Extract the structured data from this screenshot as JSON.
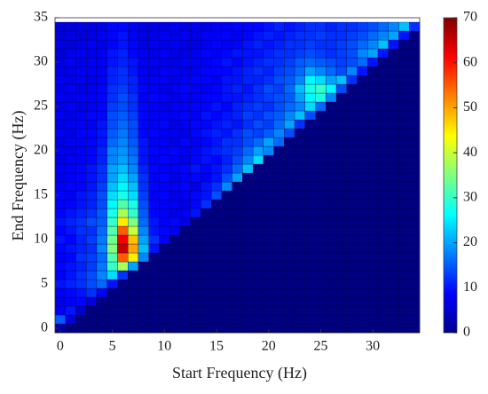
{
  "chart_data": {
    "type": "heatmap",
    "x_label": "Start Frequency (Hz)",
    "y_label": "End Frequency (Hz)",
    "x": [
      0,
      1,
      2,
      3,
      4,
      5,
      6,
      7,
      8,
      9,
      10,
      11,
      12,
      13,
      14,
      15,
      16,
      17,
      18,
      19,
      20,
      21,
      22,
      23,
      24,
      25,
      26,
      27,
      28,
      29,
      30,
      31,
      32,
      33,
      34
    ],
    "y": [
      0,
      1,
      2,
      3,
      4,
      5,
      6,
      7,
      8,
      9,
      10,
      11,
      12,
      13,
      14,
      15,
      16,
      17,
      18,
      19,
      20,
      21,
      22,
      23,
      24,
      25,
      26,
      27,
      28,
      29,
      30,
      31,
      32,
      33,
      34
    ],
    "z": [
      [
        3,
        0,
        0,
        0,
        0,
        0,
        0,
        0,
        0,
        0,
        0,
        0,
        0,
        0,
        0,
        0,
        0,
        0,
        0,
        0,
        0,
        0,
        0,
        0,
        0,
        0,
        0,
        0,
        0,
        0,
        0,
        0,
        0,
        0,
        0
      ],
      [
        15,
        6,
        0,
        0,
        0,
        0,
        0,
        0,
        0,
        0,
        0,
        0,
        0,
        0,
        0,
        0,
        0,
        0,
        0,
        0,
        0,
        0,
        0,
        0,
        0,
        0,
        0,
        0,
        0,
        0,
        0,
        0,
        0,
        0,
        0
      ],
      [
        8,
        10,
        5,
        0,
        0,
        0,
        0,
        0,
        0,
        0,
        0,
        0,
        0,
        0,
        0,
        0,
        0,
        0,
        0,
        0,
        0,
        0,
        0,
        0,
        0,
        0,
        0,
        0,
        0,
        0,
        0,
        0,
        0,
        0,
        0
      ],
      [
        7,
        8,
        9,
        6,
        0,
        0,
        0,
        0,
        0,
        0,
        0,
        0,
        0,
        0,
        0,
        0,
        0,
        0,
        0,
        0,
        0,
        0,
        0,
        0,
        0,
        0,
        0,
        0,
        0,
        0,
        0,
        0,
        0,
        0,
        0
      ],
      [
        8,
        9,
        10,
        12,
        8,
        0,
        0,
        0,
        0,
        0,
        0,
        0,
        0,
        0,
        0,
        0,
        0,
        0,
        0,
        0,
        0,
        0,
        0,
        0,
        0,
        0,
        0,
        0,
        0,
        0,
        0,
        0,
        0,
        0,
        0
      ],
      [
        10,
        11,
        12,
        14,
        16,
        10,
        0,
        0,
        0,
        0,
        0,
        0,
        0,
        0,
        0,
        0,
        0,
        0,
        0,
        0,
        0,
        0,
        0,
        0,
        0,
        0,
        0,
        0,
        0,
        0,
        0,
        0,
        0,
        0,
        0
      ],
      [
        8,
        10,
        12,
        14,
        18,
        24,
        12,
        0,
        0,
        0,
        0,
        0,
        0,
        0,
        0,
        0,
        0,
        0,
        0,
        0,
        0,
        0,
        0,
        0,
        0,
        0,
        0,
        0,
        0,
        0,
        0,
        0,
        0,
        0,
        0
      ],
      [
        9,
        10,
        11,
        13,
        17,
        30,
        38,
        20,
        0,
        0,
        0,
        0,
        0,
        0,
        0,
        0,
        0,
        0,
        0,
        0,
        0,
        0,
        0,
        0,
        0,
        0,
        0,
        0,
        0,
        0,
        0,
        0,
        0,
        0,
        0
      ],
      [
        8,
        9,
        12,
        13,
        16,
        32,
        55,
        45,
        18,
        0,
        0,
        0,
        0,
        0,
        0,
        0,
        0,
        0,
        0,
        0,
        0,
        0,
        0,
        0,
        0,
        0,
        0,
        0,
        0,
        0,
        0,
        0,
        0,
        0,
        0
      ],
      [
        9,
        10,
        11,
        12,
        18,
        35,
        65,
        50,
        22,
        10,
        0,
        0,
        0,
        0,
        0,
        0,
        0,
        0,
        0,
        0,
        0,
        0,
        0,
        0,
        0,
        0,
        0,
        0,
        0,
        0,
        0,
        0,
        0,
        0,
        0
      ],
      [
        10,
        9,
        11,
        13,
        17,
        34,
        62,
        48,
        20,
        12,
        8,
        0,
        0,
        0,
        0,
        0,
        0,
        0,
        0,
        0,
        0,
        0,
        0,
        0,
        0,
        0,
        0,
        0,
        0,
        0,
        0,
        0,
        0,
        0,
        0
      ],
      [
        9,
        10,
        12,
        12,
        16,
        32,
        55,
        40,
        18,
        10,
        9,
        8,
        0,
        0,
        0,
        0,
        0,
        0,
        0,
        0,
        0,
        0,
        0,
        0,
        0,
        0,
        0,
        0,
        0,
        0,
        0,
        0,
        0,
        0,
        0
      ],
      [
        10,
        11,
        12,
        14,
        15,
        30,
        45,
        35,
        16,
        10,
        8,
        9,
        7,
        0,
        0,
        0,
        0,
        0,
        0,
        0,
        0,
        0,
        0,
        0,
        0,
        0,
        0,
        0,
        0,
        0,
        0,
        0,
        0,
        0,
        0
      ],
      [
        9,
        10,
        11,
        12,
        15,
        28,
        38,
        30,
        15,
        9,
        8,
        7,
        8,
        10,
        0,
        0,
        0,
        0,
        0,
        0,
        0,
        0,
        0,
        0,
        0,
        0,
        0,
        0,
        0,
        0,
        0,
        0,
        0,
        0,
        0
      ],
      [
        8,
        9,
        10,
        11,
        14,
        26,
        32,
        28,
        14,
        9,
        8,
        8,
        7,
        9,
        12,
        0,
        0,
        0,
        0,
        0,
        0,
        0,
        0,
        0,
        0,
        0,
        0,
        0,
        0,
        0,
        0,
        0,
        0,
        0,
        0
      ],
      [
        9,
        8,
        10,
        11,
        14,
        24,
        28,
        24,
        13,
        8,
        9,
        7,
        8,
        9,
        10,
        14,
        0,
        0,
        0,
        0,
        0,
        0,
        0,
        0,
        0,
        0,
        0,
        0,
        0,
        0,
        0,
        0,
        0,
        0,
        0
      ],
      [
        8,
        9,
        9,
        10,
        13,
        22,
        26,
        22,
        12,
        9,
        8,
        8,
        9,
        7,
        10,
        12,
        18,
        0,
        0,
        0,
        0,
        0,
        0,
        0,
        0,
        0,
        0,
        0,
        0,
        0,
        0,
        0,
        0,
        0,
        0
      ],
      [
        7,
        8,
        9,
        10,
        12,
        20,
        24,
        20,
        12,
        8,
        9,
        7,
        8,
        9,
        8,
        10,
        14,
        20,
        0,
        0,
        0,
        0,
        0,
        0,
        0,
        0,
        0,
        0,
        0,
        0,
        0,
        0,
        0,
        0,
        0
      ],
      [
        8,
        8,
        9,
        10,
        12,
        20,
        22,
        18,
        11,
        9,
        8,
        8,
        9,
        10,
        9,
        10,
        12,
        16,
        22,
        0,
        0,
        0,
        0,
        0,
        0,
        0,
        0,
        0,
        0,
        0,
        0,
        0,
        0,
        0,
        0
      ],
      [
        7,
        8,
        8,
        9,
        11,
        18,
        20,
        17,
        10,
        8,
        9,
        8,
        7,
        9,
        10,
        9,
        11,
        14,
        18,
        24,
        0,
        0,
        0,
        0,
        0,
        0,
        0,
        0,
        0,
        0,
        0,
        0,
        0,
        0,
        0
      ],
      [
        8,
        7,
        8,
        9,
        11,
        18,
        19,
        16,
        10,
        9,
        8,
        9,
        8,
        9,
        10,
        11,
        12,
        13,
        16,
        20,
        18,
        0,
        0,
        0,
        0,
        0,
        0,
        0,
        0,
        0,
        0,
        0,
        0,
        0,
        0
      ],
      [
        7,
        8,
        8,
        9,
        10,
        16,
        18,
        15,
        10,
        8,
        8,
        7,
        9,
        8,
        9,
        10,
        12,
        12,
        14,
        16,
        20,
        16,
        0,
        0,
        0,
        0,
        0,
        0,
        0,
        0,
        0,
        0,
        0,
        0,
        0
      ],
      [
        8,
        7,
        9,
        9,
        10,
        15,
        17,
        14,
        9,
        9,
        8,
        8,
        7,
        9,
        10,
        11,
        10,
        12,
        14,
        13,
        15,
        18,
        14,
        0,
        0,
        0,
        0,
        0,
        0,
        0,
        0,
        0,
        0,
        0,
        0
      ],
      [
        7,
        8,
        8,
        8,
        10,
        14,
        16,
        14,
        9,
        8,
        9,
        7,
        8,
        9,
        9,
        10,
        11,
        10,
        12,
        14,
        13,
        16,
        20,
        12,
        0,
        0,
        0,
        0,
        0,
        0,
        0,
        0,
        0,
        0,
        0
      ],
      [
        8,
        7,
        8,
        9,
        9,
        14,
        15,
        13,
        9,
        8,
        8,
        8,
        9,
        8,
        10,
        9,
        10,
        11,
        13,
        12,
        14,
        15,
        18,
        22,
        14,
        0,
        0,
        0,
        0,
        0,
        0,
        0,
        0,
        0,
        0
      ],
      [
        7,
        8,
        7,
        8,
        9,
        13,
        14,
        12,
        9,
        8,
        7,
        8,
        8,
        9,
        9,
        10,
        9,
        11,
        12,
        13,
        12,
        14,
        16,
        18,
        24,
        16,
        0,
        0,
        0,
        0,
        0,
        0,
        0,
        0,
        0
      ],
      [
        8,
        7,
        8,
        8,
        9,
        12,
        14,
        12,
        8,
        9,
        8,
        7,
        8,
        8,
        9,
        9,
        10,
        10,
        11,
        12,
        13,
        14,
        15,
        20,
        26,
        28,
        18,
        0,
        0,
        0,
        0,
        0,
        0,
        0,
        0
      ],
      [
        7,
        8,
        7,
        8,
        9,
        12,
        13,
        11,
        9,
        8,
        7,
        8,
        9,
        8,
        8,
        9,
        10,
        11,
        10,
        12,
        14,
        13,
        16,
        22,
        28,
        30,
        26,
        14,
        0,
        0,
        0,
        0,
        0,
        0,
        0
      ],
      [
        8,
        7,
        8,
        7,
        8,
        11,
        12,
        11,
        8,
        8,
        8,
        7,
        8,
        9,
        9,
        8,
        10,
        10,
        11,
        11,
        12,
        14,
        15,
        18,
        26,
        24,
        20,
        22,
        12,
        0,
        0,
        0,
        0,
        0,
        0
      ],
      [
        7,
        7,
        8,
        8,
        8,
        11,
        12,
        10,
        8,
        7,
        8,
        8,
        7,
        8,
        9,
        9,
        9,
        10,
        11,
        12,
        11,
        13,
        14,
        16,
        20,
        18,
        16,
        14,
        18,
        10,
        0,
        0,
        0,
        0,
        0
      ],
      [
        7,
        8,
        7,
        8,
        8,
        10,
        11,
        10,
        8,
        8,
        7,
        7,
        8,
        8,
        8,
        9,
        10,
        9,
        10,
        11,
        12,
        12,
        13,
        15,
        16,
        15,
        14,
        13,
        14,
        16,
        10,
        0,
        0,
        0,
        0
      ],
      [
        6,
        7,
        8,
        7,
        8,
        10,
        11,
        9,
        8,
        7,
        8,
        7,
        7,
        8,
        9,
        8,
        9,
        10,
        10,
        10,
        11,
        12,
        12,
        13,
        14,
        13,
        12,
        13,
        14,
        18,
        20,
        10,
        0,
        0,
        0
      ],
      [
        7,
        6,
        7,
        8,
        7,
        9,
        10,
        9,
        7,
        8,
        7,
        8,
        7,
        7,
        8,
        9,
        8,
        9,
        10,
        11,
        10,
        11,
        12,
        12,
        13,
        12,
        12,
        13,
        14,
        16,
        18,
        22,
        10,
        0,
        0
      ],
      [
        6,
        7,
        6,
        7,
        8,
        9,
        10,
        8,
        7,
        7,
        8,
        7,
        8,
        7,
        8,
        8,
        9,
        8,
        9,
        10,
        11,
        10,
        11,
        12,
        12,
        13,
        12,
        12,
        13,
        14,
        16,
        18,
        20,
        10,
        0
      ],
      [
        6,
        6,
        7,
        7,
        7,
        9,
        9,
        8,
        7,
        7,
        7,
        8,
        7,
        8,
        7,
        8,
        8,
        9,
        9,
        9,
        10,
        11,
        10,
        11,
        12,
        12,
        11,
        12,
        12,
        13,
        14,
        16,
        18,
        22,
        12
      ]
    ],
    "xlim": [
      -0.5,
      34.5
    ],
    "ylim": [
      -0.5,
      35
    ],
    "xticks": [
      0,
      5,
      10,
      15,
      20,
      25,
      30
    ],
    "yticks": [
      0,
      5,
      10,
      15,
      20,
      25,
      30,
      35
    ],
    "colormap": "jet",
    "zlim": [
      0,
      70
    ],
    "cticks": [
      0,
      10,
      20,
      30,
      40,
      50,
      60,
      70
    ]
  }
}
